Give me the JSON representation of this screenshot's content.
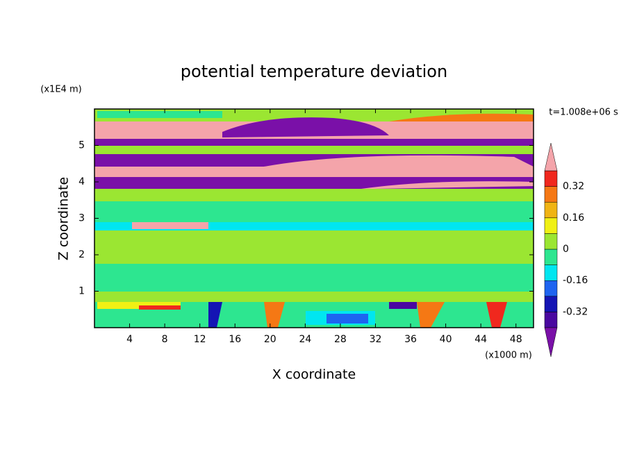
{
  "chart_data": {
    "type": "contour",
    "title": "potential temperature deviation",
    "xlabel": "X coordinate",
    "ylabel": "Z coordinate",
    "x_unit": "(x1000 m)",
    "y_unit": "(x1E4 m)",
    "time_label": "t=1.008e+06 s",
    "xlim": [
      0,
      50
    ],
    "xticks": [
      4,
      8,
      12,
      16,
      20,
      24,
      28,
      32,
      36,
      40,
      44,
      48
    ],
    "ylim": [
      0,
      6
    ],
    "yticks": [
      1,
      2,
      3,
      4,
      5
    ],
    "colorbar": {
      "levels": [
        -0.4,
        -0.32,
        -0.24,
        -0.16,
        -0.08,
        0,
        0.08,
        0.16,
        0.24,
        0.32,
        0.4
      ],
      "colors": [
        "#7a10a8",
        "#4a08a0",
        "#1414b4",
        "#1e64f0",
        "#00e6f0",
        "#2de690",
        "#9be632",
        "#f0f014",
        "#f0b414",
        "#f57814",
        "#f0281e",
        "#f4a4aa"
      ],
      "ticks": [
        -0.32,
        -0.16,
        0,
        0.16,
        0.32
      ]
    }
  }
}
